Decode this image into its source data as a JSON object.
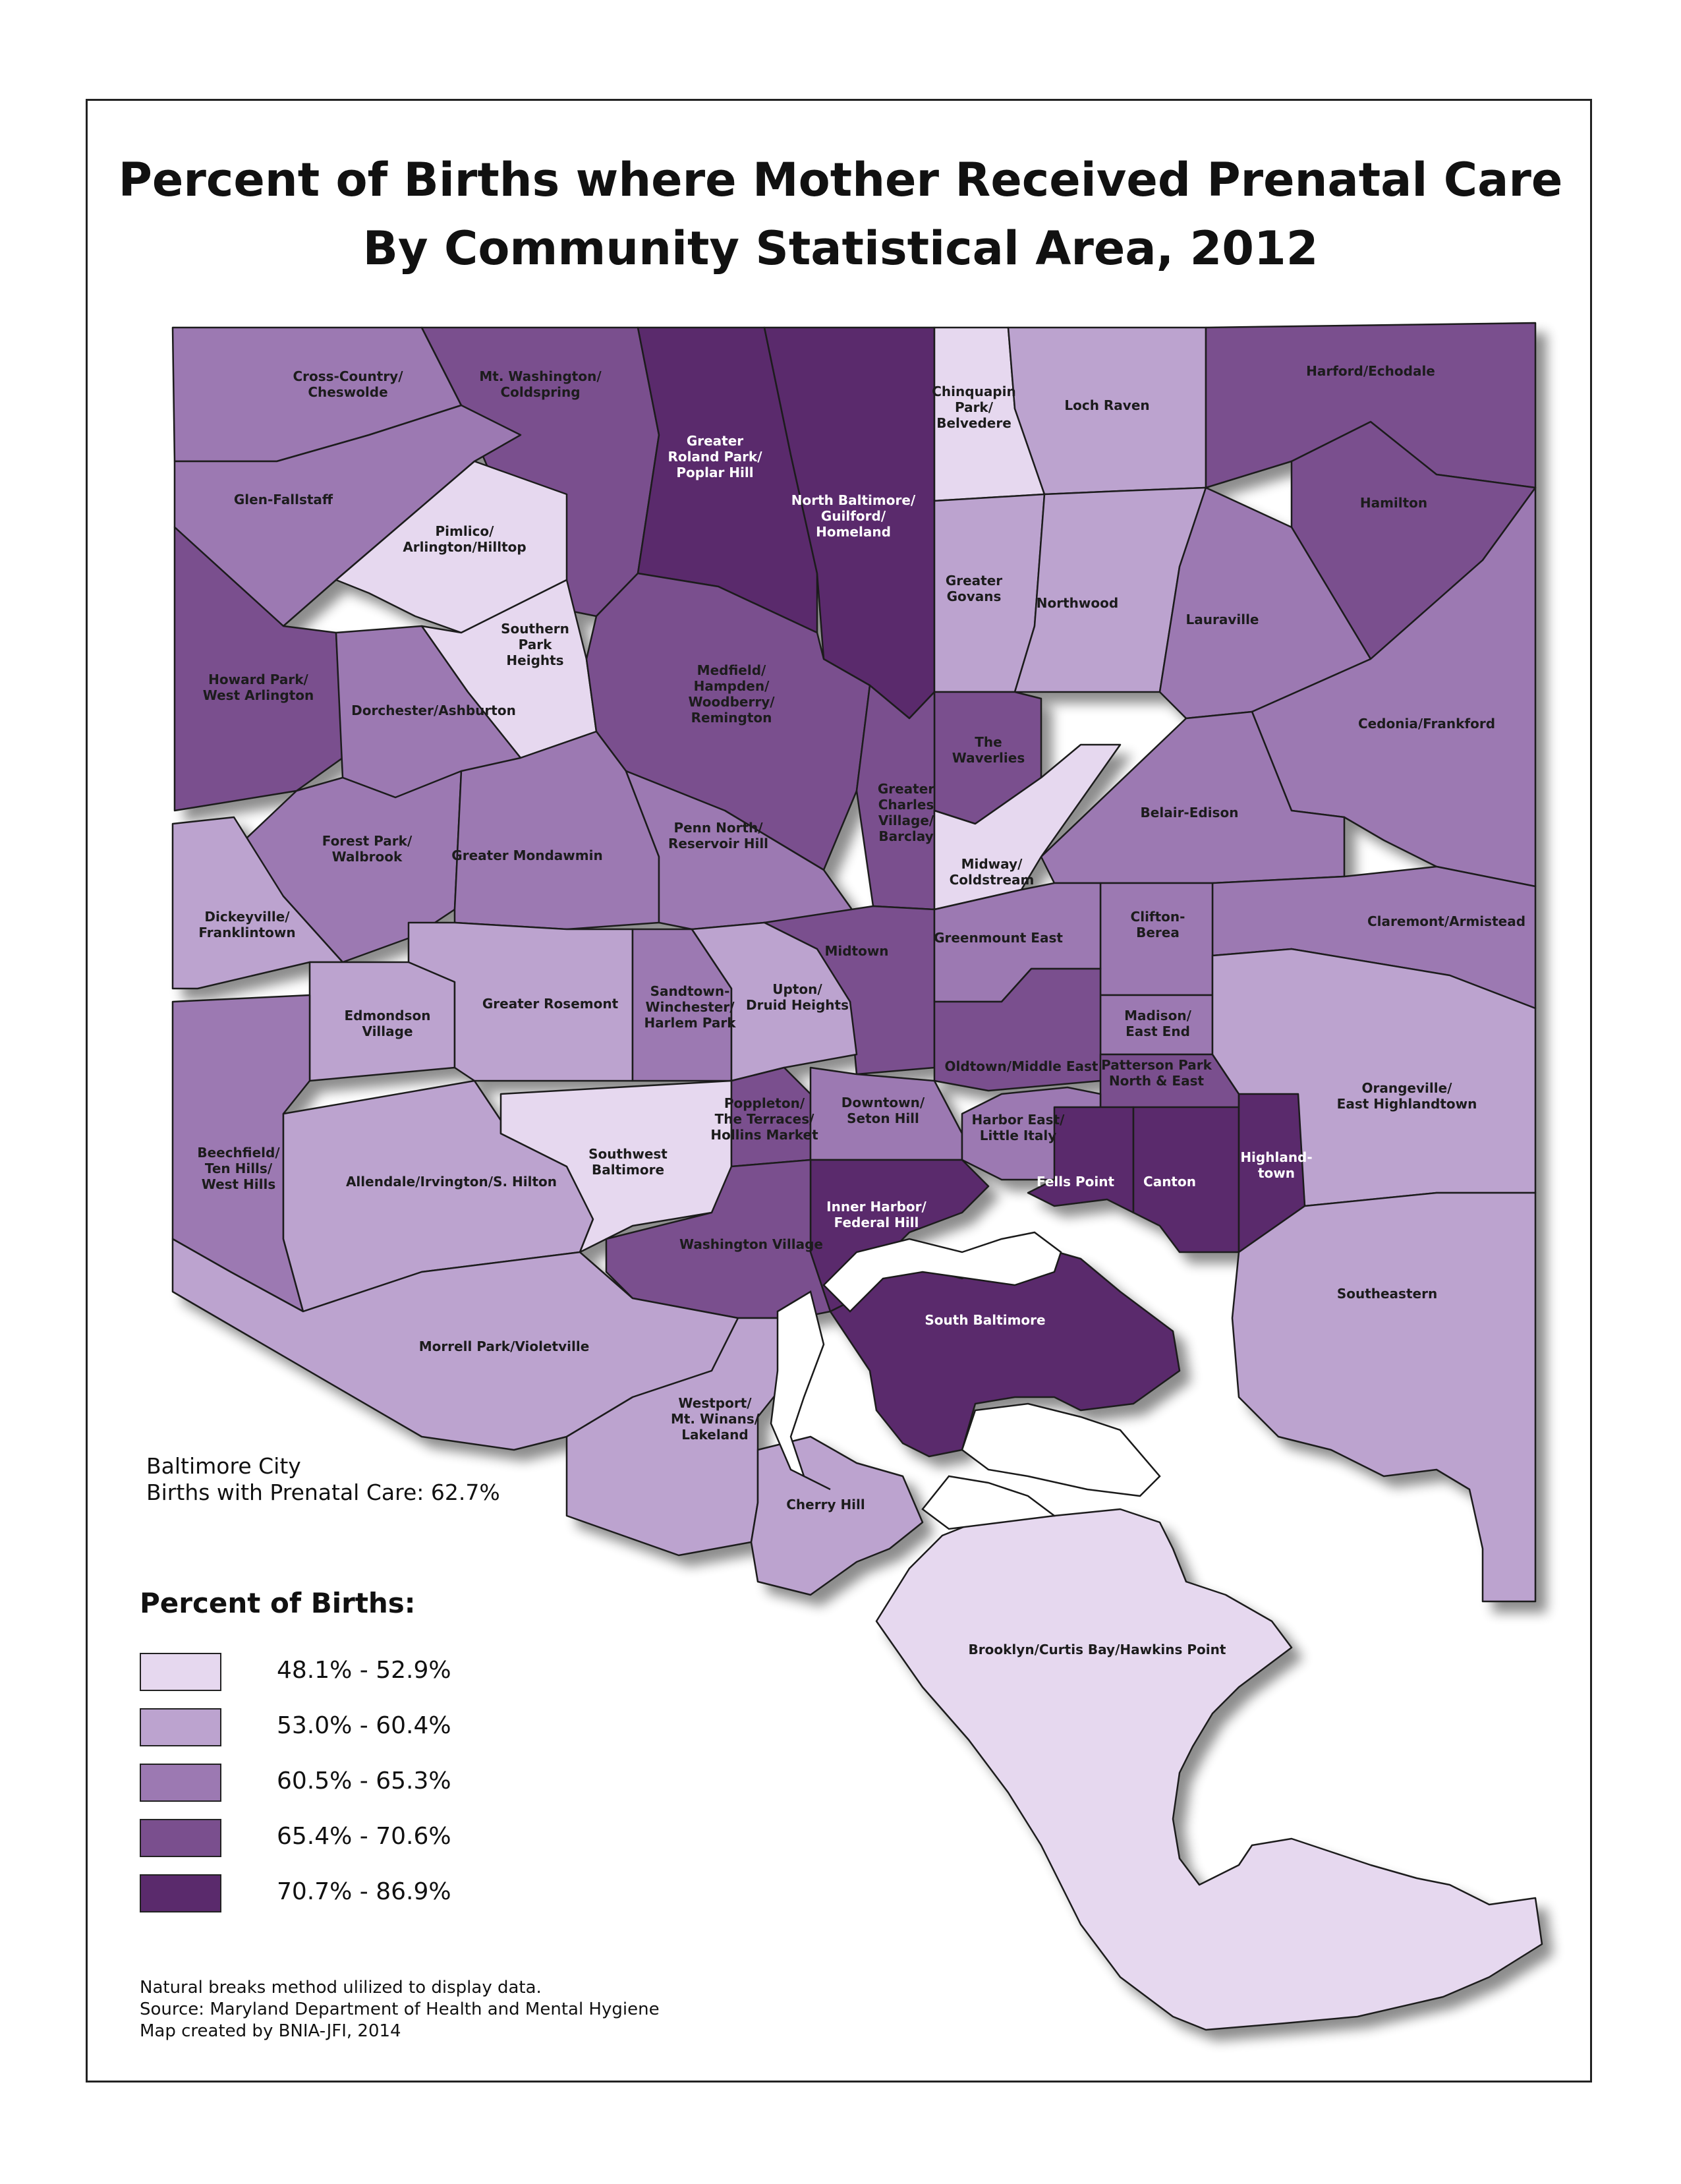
{
  "title": {
    "line1": "Percent of Births where Mother Received Prenatal Care",
    "line2": "By Community Statistical Area, 2012"
  },
  "summary": {
    "line1": "Baltimore City",
    "line2": "Births with Prenatal Care: 62.7%"
  },
  "legend": {
    "title": "Percent of Births:",
    "classes": [
      {
        "label": "48.1% - 52.9%",
        "color": "#e6d8ef"
      },
      {
        "label": "53.0% - 60.4%",
        "color": "#bca3cf"
      },
      {
        "label": "60.5% - 65.3%",
        "color": "#9c79b2"
      },
      {
        "label": "65.4% - 70.6%",
        "color": "#7a4f8e"
      },
      {
        "label": "70.7% - 86.9%",
        "color": "#5a2a6c"
      }
    ]
  },
  "notes": {
    "line1": "Natural breaks method ulilized to display data.",
    "line2": "Source: Maryland Department of Health and Mental Hygiene",
    "line3": "Map created by BNIA-JFI, 2014"
  },
  "map": {
    "areas": [
      {
        "id": "cross-country",
        "name_lines": [
          "Cross-Country/",
          "Cheswolde"
        ],
        "class": 2
      },
      {
        "id": "mt-washington",
        "name_lines": [
          "Mt. Washington/",
          "Coldspring"
        ],
        "class": 3
      },
      {
        "id": "roland-park",
        "name_lines": [
          "Greater",
          "Roland Park/",
          "Poplar Hill"
        ],
        "class": 4
      },
      {
        "id": "north-baltimore",
        "name_lines": [
          "North Baltimore/",
          "Guilford/",
          "Homeland"
        ],
        "class": 4
      },
      {
        "id": "chinquapin",
        "name_lines": [
          "Chinquapin",
          "Park/",
          "Belvedere"
        ],
        "class": 0
      },
      {
        "id": "loch-raven",
        "name_lines": [
          "Loch Raven"
        ],
        "class": 1
      },
      {
        "id": "harford",
        "name_lines": [
          "Harford/Echodale"
        ],
        "class": 3
      },
      {
        "id": "hamilton",
        "name_lines": [
          "Hamilton"
        ],
        "class": 3
      },
      {
        "id": "glen-fallstaff",
        "name_lines": [
          "Glen-Fallstaff"
        ],
        "class": 2
      },
      {
        "id": "pimlico",
        "name_lines": [
          "Pimlico/",
          "Arlington/Hilltop"
        ],
        "class": 0
      },
      {
        "id": "southern-park",
        "name_lines": [
          "Southern",
          "Park",
          "Heights"
        ],
        "class": 0
      },
      {
        "id": "howard-park",
        "name_lines": [
          "Howard Park/",
          "West Arlington"
        ],
        "class": 3
      },
      {
        "id": "dorchester",
        "name_lines": [
          "Dorchester/Ashburton"
        ],
        "class": 2
      },
      {
        "id": "medfield",
        "name_lines": [
          "Medfield/",
          "Hampden/",
          "Woodberry/",
          "Remington"
        ],
        "class": 3
      },
      {
        "id": "greater-govans",
        "name_lines": [
          "Greater",
          "Govans"
        ],
        "class": 1
      },
      {
        "id": "northwood",
        "name_lines": [
          "Northwood"
        ],
        "class": 1
      },
      {
        "id": "lauraville",
        "name_lines": [
          "Lauraville"
        ],
        "class": 2
      },
      {
        "id": "cedonia",
        "name_lines": [
          "Cedonia/Frankford"
        ],
        "class": 2
      },
      {
        "id": "waverlies",
        "name_lines": [
          "The",
          "Waverlies"
        ],
        "class": 3
      },
      {
        "id": "charles-village",
        "name_lines": [
          "Greater",
          "Charles",
          "Village/",
          "Barclay"
        ],
        "class": 3
      },
      {
        "id": "forest-park",
        "name_lines": [
          "Forest Park/",
          "Walbrook"
        ],
        "class": 2
      },
      {
        "id": "greater-mondawmin",
        "name_lines": [
          "Greater Mondawmin"
        ],
        "class": 2
      },
      {
        "id": "penn-north",
        "name_lines": [
          "Penn North/",
          "Reservoir Hill"
        ],
        "class": 2
      },
      {
        "id": "belair-edison",
        "name_lines": [
          "Belair-Edison"
        ],
        "class": 2
      },
      {
        "id": "midway",
        "name_lines": [
          "Midway/",
          "Coldstream"
        ],
        "class": 0
      },
      {
        "id": "dickeyville",
        "name_lines": [
          "Dickeyville/",
          "Franklintown"
        ],
        "class": 1
      },
      {
        "id": "claremont",
        "name_lines": [
          "Claremont/Armistead"
        ],
        "class": 2
      },
      {
        "id": "clifton",
        "name_lines": [
          "Clifton-",
          "Berea"
        ],
        "class": 2
      },
      {
        "id": "midtown",
        "name_lines": [
          "Midtown"
        ],
        "class": 3
      },
      {
        "id": "greenmount",
        "name_lines": [
          "Greenmount East"
        ],
        "class": 2
      },
      {
        "id": "edmondson",
        "name_lines": [
          "Edmondson",
          "Village"
        ],
        "class": 1
      },
      {
        "id": "greater-rosemont",
        "name_lines": [
          "Greater Rosemont"
        ],
        "class": 1
      },
      {
        "id": "sandtown",
        "name_lines": [
          "Sandtown-",
          "Winchester/",
          "Harlem Park"
        ],
        "class": 2
      },
      {
        "id": "upton",
        "name_lines": [
          "Upton/",
          "Druid Heights"
        ],
        "class": 1
      },
      {
        "id": "madison",
        "name_lines": [
          "Madison/",
          "East End"
        ],
        "class": 2
      },
      {
        "id": "oldtown",
        "name_lines": [
          "Oldtown/Middle East"
        ],
        "class": 3
      },
      {
        "id": "patterson-park",
        "name_lines": [
          "Patterson Park",
          "North & East"
        ],
        "class": 3
      },
      {
        "id": "orangeville",
        "name_lines": [
          "Orangeville/",
          "East Highlandtown"
        ],
        "class": 1
      },
      {
        "id": "beechfield",
        "name_lines": [
          "Beechfield/",
          "Ten Hills/",
          "West Hills"
        ],
        "class": 2
      },
      {
        "id": "allendale",
        "name_lines": [
          "Allendale/Irvington/S. Hilton"
        ],
        "class": 1
      },
      {
        "id": "southwest",
        "name_lines": [
          "Southwest",
          "Baltimore"
        ],
        "class": 0
      },
      {
        "id": "poppleton",
        "name_lines": [
          "Poppleton/",
          "The Terraces/",
          "Hollins Market"
        ],
        "class": 3
      },
      {
        "id": "downtown",
        "name_lines": [
          "Downtown/",
          "Seton Hill"
        ],
        "class": 2
      },
      {
        "id": "harbor-east",
        "name_lines": [
          "Harbor East/",
          "Little Italy"
        ],
        "class": 2
      },
      {
        "id": "fells-point",
        "name_lines": [
          "Fells Point"
        ],
        "class": 4
      },
      {
        "id": "canton",
        "name_lines": [
          "Canton"
        ],
        "class": 4
      },
      {
        "id": "highlandtown",
        "name_lines": [
          "Highland-",
          "town"
        ],
        "class": 4
      },
      {
        "id": "inner-harbor",
        "name_lines": [
          "Inner Harbor/",
          "Federal Hill"
        ],
        "class": 4
      },
      {
        "id": "washington-village",
        "name_lines": [
          "Washington Village"
        ],
        "class": 3
      },
      {
        "id": "south-baltimore",
        "name_lines": [
          "South Baltimore"
        ],
        "class": 4
      },
      {
        "id": "southeastern",
        "name_lines": [
          "Southeastern"
        ],
        "class": 1
      },
      {
        "id": "morrell-park",
        "name_lines": [
          "Morrell Park/Violetville"
        ],
        "class": 1
      },
      {
        "id": "westport",
        "name_lines": [
          "Westport/",
          "Mt. Winans/",
          "Lakeland"
        ],
        "class": 1
      },
      {
        "id": "cherry-hill",
        "name_lines": [
          "Cherry Hill"
        ],
        "class": 1
      },
      {
        "id": "brooklyn",
        "name_lines": [
          "Brooklyn/Curtis Bay/Hawkins Point"
        ],
        "class": 0
      }
    ]
  }
}
